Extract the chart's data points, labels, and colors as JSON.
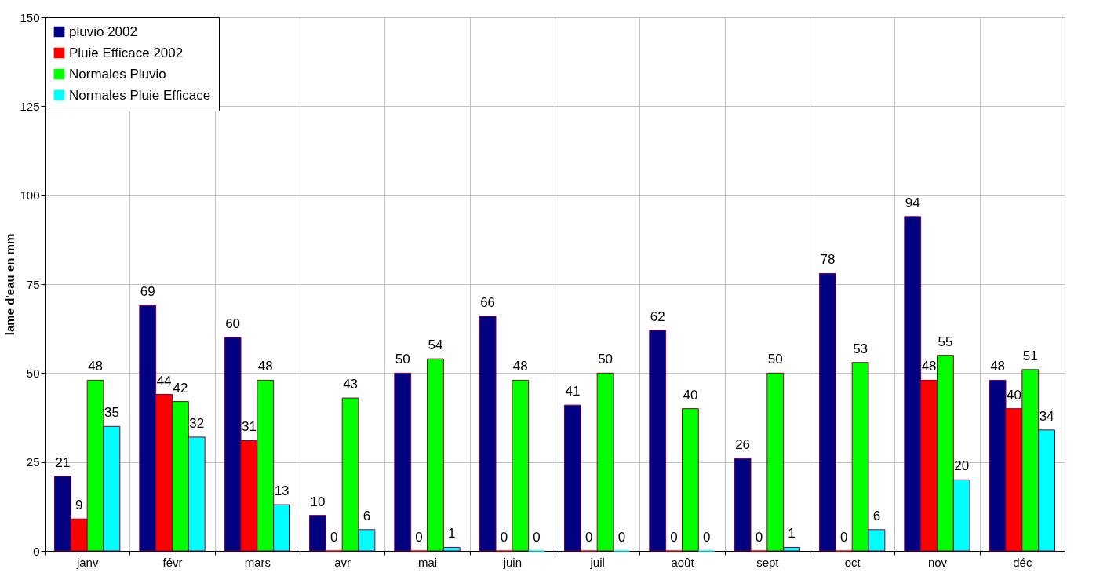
{
  "chart_data": {
    "type": "bar",
    "ylabel": "lame d'eau en mm",
    "categories": [
      "janv",
      "févr",
      "mars",
      "avr",
      "mai",
      "juin",
      "juil",
      "août",
      "sept",
      "oct",
      "nov",
      "déc"
    ],
    "series": [
      {
        "name": "pluvio 2002",
        "color": "#000080",
        "values": [
          21,
          69,
          60,
          10,
          50,
          66,
          41,
          62,
          26,
          78,
          94,
          48
        ]
      },
      {
        "name": "Pluie Efficace 2002",
        "color": "#ff0000",
        "values": [
          9,
          44,
          31,
          0,
          0,
          0,
          0,
          0,
          0,
          0,
          48,
          40
        ]
      },
      {
        "name": "Normales Pluvio",
        "color": "#00ff00",
        "values": [
          48,
          42,
          48,
          43,
          54,
          48,
          50,
          40,
          50,
          53,
          55,
          51
        ]
      },
      {
        "name": "Normales Pluie Efficace",
        "color": "#00ffff",
        "values": [
          35,
          32,
          13,
          6,
          1,
          0,
          0,
          0,
          1,
          6,
          20,
          34
        ]
      }
    ],
    "ylim": [
      0,
      150
    ],
    "yticks": [
      0,
      25,
      50,
      75,
      100,
      125,
      150
    ],
    "grid": true,
    "legend": "top left",
    "data_labels": true
  }
}
